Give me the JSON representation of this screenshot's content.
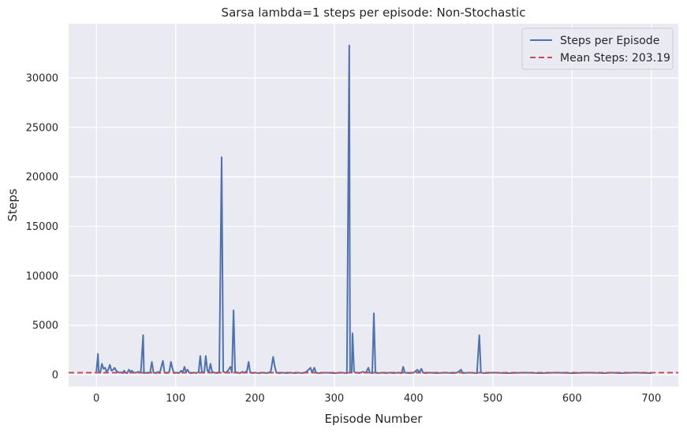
{
  "chart_data": {
    "type": "line",
    "title": "Sarsa lambda=1 steps per episode: Non-Stochastic",
    "xlabel": "Episode Number",
    "ylabel": "Steps",
    "xlim": [
      -35,
      734
    ],
    "ylim": [
      -1200,
      35500
    ],
    "xticks": [
      0,
      100,
      200,
      300,
      400,
      500,
      600,
      700
    ],
    "yticks": [
      0,
      5000,
      10000,
      15000,
      20000,
      25000,
      30000
    ],
    "grid": true,
    "legend_position": "top-right",
    "colors": {
      "background": "#eaeaf2",
      "grid": "#ffffff",
      "series": "#4c72b0",
      "mean": "#c44e52"
    },
    "series": [
      {
        "name": "Steps per Episode",
        "points": [
          [
            0,
            300
          ],
          [
            2,
            2100
          ],
          [
            3,
            300
          ],
          [
            5,
            200
          ],
          [
            7,
            1100
          ],
          [
            9,
            600
          ],
          [
            11,
            700
          ],
          [
            13,
            300
          ],
          [
            15,
            500
          ],
          [
            17,
            1000
          ],
          [
            19,
            400
          ],
          [
            21,
            500
          ],
          [
            23,
            700
          ],
          [
            25,
            400
          ],
          [
            27,
            300
          ],
          [
            29,
            200
          ],
          [
            31,
            250
          ],
          [
            33,
            150
          ],
          [
            35,
            400
          ],
          [
            37,
            200
          ],
          [
            39,
            150
          ],
          [
            41,
            500
          ],
          [
            43,
            300
          ],
          [
            45,
            400
          ],
          [
            47,
            200
          ],
          [
            50,
            200
          ],
          [
            53,
            300
          ],
          [
            56,
            200
          ],
          [
            59,
            4000
          ],
          [
            60,
            150
          ],
          [
            62,
            200
          ],
          [
            65,
            150
          ],
          [
            68,
            300
          ],
          [
            70,
            1300
          ],
          [
            72,
            200
          ],
          [
            75,
            150
          ],
          [
            78,
            300
          ],
          [
            80,
            150
          ],
          [
            82,
            800
          ],
          [
            84,
            1400
          ],
          [
            86,
            200
          ],
          [
            89,
            150
          ],
          [
            92,
            300
          ],
          [
            94,
            1300
          ],
          [
            96,
            600
          ],
          [
            98,
            150
          ],
          [
            101,
            200
          ],
          [
            104,
            150
          ],
          [
            107,
            400
          ],
          [
            109,
            200
          ],
          [
            111,
            800
          ],
          [
            113,
            300
          ],
          [
            115,
            500
          ],
          [
            117,
            200
          ],
          [
            120,
            150
          ],
          [
            123,
            200
          ],
          [
            126,
            150
          ],
          [
            129,
            300
          ],
          [
            131,
            1900
          ],
          [
            133,
            300
          ],
          [
            136,
            200
          ],
          [
            138,
            1900
          ],
          [
            140,
            400
          ],
          [
            142,
            300
          ],
          [
            144,
            1100
          ],
          [
            146,
            300
          ],
          [
            149,
            200
          ],
          [
            152,
            150
          ],
          [
            155,
            300
          ],
          [
            158,
            22000
          ],
          [
            160,
            300
          ],
          [
            163,
            200
          ],
          [
            166,
            400
          ],
          [
            169,
            800
          ],
          [
            171,
            200
          ],
          [
            173,
            6500
          ],
          [
            175,
            300
          ],
          [
            178,
            200
          ],
          [
            181,
            150
          ],
          [
            184,
            300
          ],
          [
            187,
            200
          ],
          [
            190,
            400
          ],
          [
            192,
            1300
          ],
          [
            194,
            200
          ],
          [
            197,
            150
          ],
          [
            200,
            200
          ],
          [
            205,
            150
          ],
          [
            210,
            200
          ],
          [
            215,
            150
          ],
          [
            220,
            300
          ],
          [
            223,
            1800
          ],
          [
            225,
            800
          ],
          [
            227,
            200
          ],
          [
            230,
            150
          ],
          [
            235,
            200
          ],
          [
            240,
            150
          ],
          [
            245,
            200
          ],
          [
            250,
            150
          ],
          [
            255,
            200
          ],
          [
            260,
            150
          ],
          [
            265,
            300
          ],
          [
            270,
            700
          ],
          [
            272,
            200
          ],
          [
            275,
            700
          ],
          [
            277,
            200
          ],
          [
            280,
            150
          ],
          [
            290,
            200
          ],
          [
            300,
            150
          ],
          [
            310,
            200
          ],
          [
            316,
            150
          ],
          [
            319,
            33300
          ],
          [
            320,
            300
          ],
          [
            322,
            200
          ],
          [
            323,
            4200
          ],
          [
            325,
            300
          ],
          [
            328,
            200
          ],
          [
            332,
            150
          ],
          [
            336,
            300
          ],
          [
            340,
            200
          ],
          [
            343,
            700
          ],
          [
            345,
            200
          ],
          [
            348,
            150
          ],
          [
            350,
            6200
          ],
          [
            352,
            200
          ],
          [
            355,
            150
          ],
          [
            360,
            200
          ],
          [
            365,
            150
          ],
          [
            370,
            200
          ],
          [
            375,
            150
          ],
          [
            380,
            200
          ],
          [
            385,
            150
          ],
          [
            387,
            800
          ],
          [
            389,
            200
          ],
          [
            395,
            150
          ],
          [
            400,
            200
          ],
          [
            405,
            500
          ],
          [
            407,
            200
          ],
          [
            410,
            600
          ],
          [
            412,
            200
          ],
          [
            415,
            150
          ],
          [
            420,
            200
          ],
          [
            430,
            150
          ],
          [
            440,
            200
          ],
          [
            450,
            150
          ],
          [
            455,
            200
          ],
          [
            460,
            500
          ],
          [
            462,
            150
          ],
          [
            470,
            200
          ],
          [
            480,
            150
          ],
          [
            483,
            4000
          ],
          [
            485,
            200
          ],
          [
            490,
            150
          ],
          [
            500,
            200
          ],
          [
            520,
            150
          ],
          [
            540,
            200
          ],
          [
            560,
            150
          ],
          [
            580,
            200
          ],
          [
            600,
            150
          ],
          [
            620,
            200
          ],
          [
            640,
            150
          ],
          [
            650,
            200
          ],
          [
            660,
            150
          ],
          [
            680,
            200
          ],
          [
            700,
            150
          ]
        ]
      },
      {
        "name": "Mean Steps: 203.19",
        "constant": 203.19
      }
    ]
  }
}
